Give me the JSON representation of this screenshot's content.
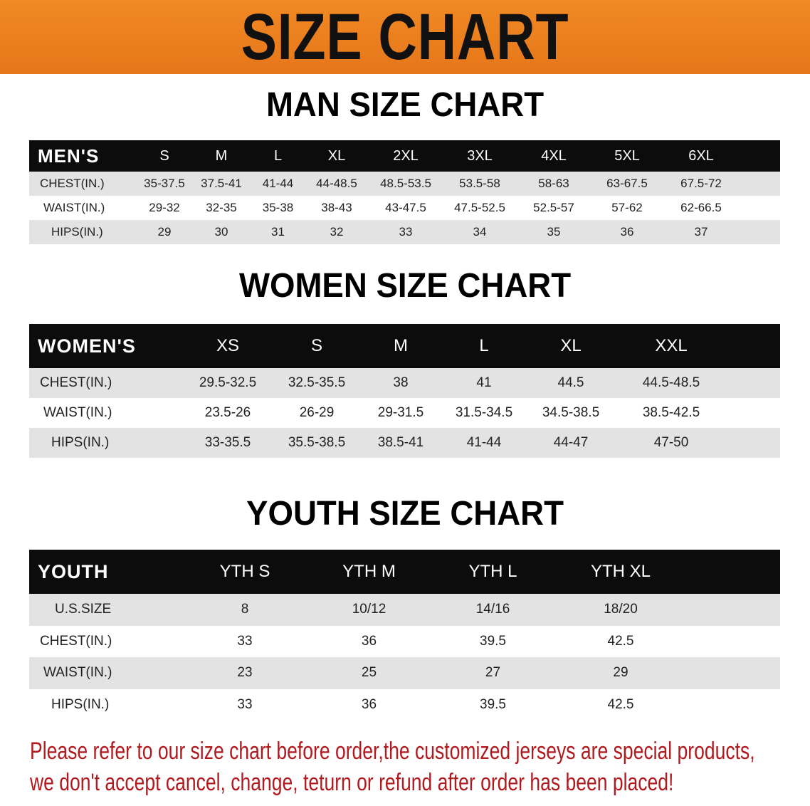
{
  "banner": {
    "title": "SIZE CHART",
    "color": "#ec7f1f"
  },
  "men": {
    "title": "MAN SIZE CHART",
    "header": [
      "MEN'S",
      "S",
      "M",
      "L",
      "XL",
      "2XL",
      "3XL",
      "4XL",
      "5XL",
      "6XL"
    ],
    "rows": [
      [
        "CHEST(IN.)",
        "35-37.5",
        "37.5-41",
        "41-44",
        "44-48.5",
        "48.5-53.5",
        "53.5-58",
        "58-63",
        "63-67.5",
        "67.5-72"
      ],
      [
        "WAIST(IN.)",
        "29-32",
        "32-35",
        "35-38",
        "38-43",
        "43-47.5",
        "47.5-52.5",
        "52.5-57",
        "57-62",
        "62-66.5"
      ],
      [
        "HIPS(IN.)",
        "29",
        "30",
        "31",
        "32",
        "33",
        "34",
        "35",
        "36",
        "37"
      ]
    ]
  },
  "women": {
    "title": "WOMEN SIZE CHART",
    "header": [
      "WOMEN'S",
      "XS",
      "S",
      "M",
      "L",
      "XL",
      "XXL"
    ],
    "rows": [
      [
        "CHEST(IN.)",
        "29.5-32.5",
        "32.5-35.5",
        "38",
        "41",
        "44.5",
        "44.5-48.5"
      ],
      [
        "WAIST(IN.)",
        "23.5-26",
        "26-29",
        "29-31.5",
        "31.5-34.5",
        "34.5-38.5",
        "38.5-42.5"
      ],
      [
        "HIPS(IN.)",
        "33-35.5",
        "35.5-38.5",
        "38.5-41",
        "41-44",
        "44-47",
        "47-50"
      ]
    ]
  },
  "youth": {
    "title": "YOUTH SIZE CHART",
    "header": [
      "YOUTH",
      "YTH S",
      "YTH M",
      "YTH L",
      "YTH XL"
    ],
    "rows": [
      [
        "U.S.SIZE",
        "8",
        "10/12",
        "14/16",
        "18/20"
      ],
      [
        "CHEST(IN.)",
        "33",
        "36",
        "39.5",
        "42.5"
      ],
      [
        "WAIST(IN.)",
        "23",
        "25",
        "27",
        "29"
      ],
      [
        "HIPS(IN.)",
        "33",
        "36",
        "39.5",
        "42.5"
      ]
    ]
  },
  "note": {
    "line1": "Please refer to our size chart before order,the customized jerseys are special products,",
    "line2": "we don't accept cancel, change, teturn or refund after order has been placed!",
    "color": "#b01a1f"
  }
}
